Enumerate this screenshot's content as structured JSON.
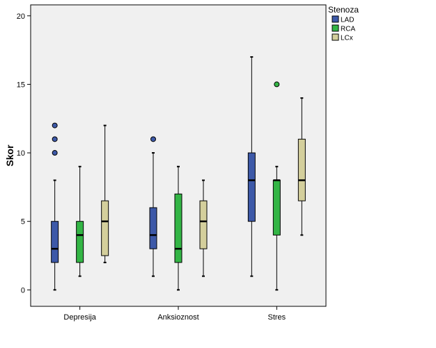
{
  "chart_data": {
    "type": "boxplot",
    "ylabel": "Skor",
    "xlabel": "",
    "ylim": [
      -1.2,
      20.8
    ],
    "yticks": [
      0,
      5,
      10,
      15,
      20
    ],
    "categories": [
      "Depresija",
      "Anksioznost",
      "Stres"
    ],
    "legend": {
      "title": "Stenoza",
      "position": "top-right",
      "entries": [
        "LAD",
        "RCA",
        "LCx"
      ]
    },
    "grid": false,
    "series": [
      {
        "name": "LAD",
        "color": "#3d59a8",
        "boxes": [
          {
            "min": 0,
            "q1": 2,
            "median": 3,
            "q3": 5,
            "max": 8,
            "outliers": [
              10,
              11,
              12
            ]
          },
          {
            "min": 1,
            "q1": 3,
            "median": 4,
            "q3": 6,
            "max": 10,
            "outliers": [
              11
            ]
          },
          {
            "min": 1,
            "q1": 5,
            "median": 8,
            "q3": 10,
            "max": 17,
            "outliers": []
          }
        ]
      },
      {
        "name": "RCA",
        "color": "#33b545",
        "boxes": [
          {
            "min": 1,
            "q1": 2,
            "median": 4,
            "q3": 5,
            "max": 9,
            "outliers": []
          },
          {
            "min": 0,
            "q1": 2,
            "median": 3,
            "q3": 7,
            "max": 9,
            "outliers": []
          },
          {
            "min": 0,
            "q1": 4,
            "median": 8,
            "q3": 8,
            "max": 9,
            "outliers": [
              15
            ]
          }
        ]
      },
      {
        "name": "LCx",
        "color": "#d4cf9c",
        "boxes": [
          {
            "min": 2,
            "q1": 2.5,
            "median": 5,
            "q3": 6.5,
            "max": 12,
            "outliers": []
          },
          {
            "min": 1,
            "q1": 3,
            "median": 5,
            "q3": 6.5,
            "max": 8,
            "outliers": []
          },
          {
            "min": 4,
            "q1": 6.5,
            "median": 8,
            "q3": 11,
            "max": 14,
            "outliers": []
          }
        ]
      }
    ],
    "colors": {
      "plot_background": "#f0f0f0",
      "axis": "#000000"
    }
  }
}
